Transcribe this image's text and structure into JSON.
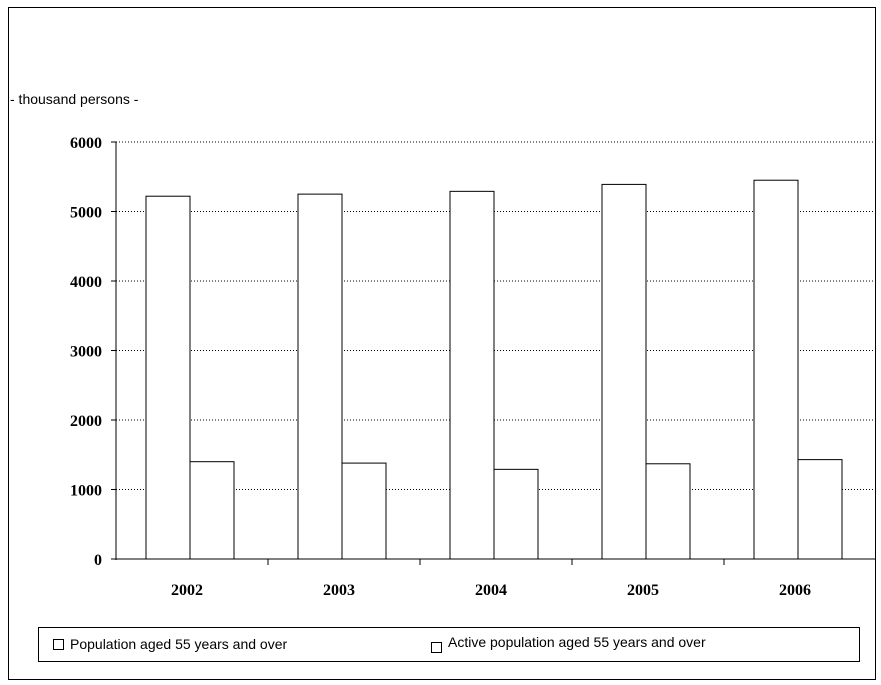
{
  "unit_label": "- thousand persons -",
  "chart_data": {
    "type": "bar",
    "categories": [
      "2002",
      "2003",
      "2004",
      "2005",
      "2006"
    ],
    "series": [
      {
        "name": "Population aged 55 years and over",
        "values": [
          5220,
          5250,
          5290,
          5390,
          5450
        ],
        "color": "#ffffff"
      },
      {
        "name": "Active population aged 55 years and over",
        "values": [
          1400,
          1380,
          1290,
          1370,
          1430
        ],
        "color": "#ffffff"
      }
    ],
    "yticks": [
      "0",
      "1000",
      "2000",
      "3000",
      "4000",
      "5000",
      "6000"
    ],
    "ylim": [
      0,
      6000
    ],
    "grid": true,
    "grid_style": "dotted",
    "legend_position": "bottom"
  }
}
